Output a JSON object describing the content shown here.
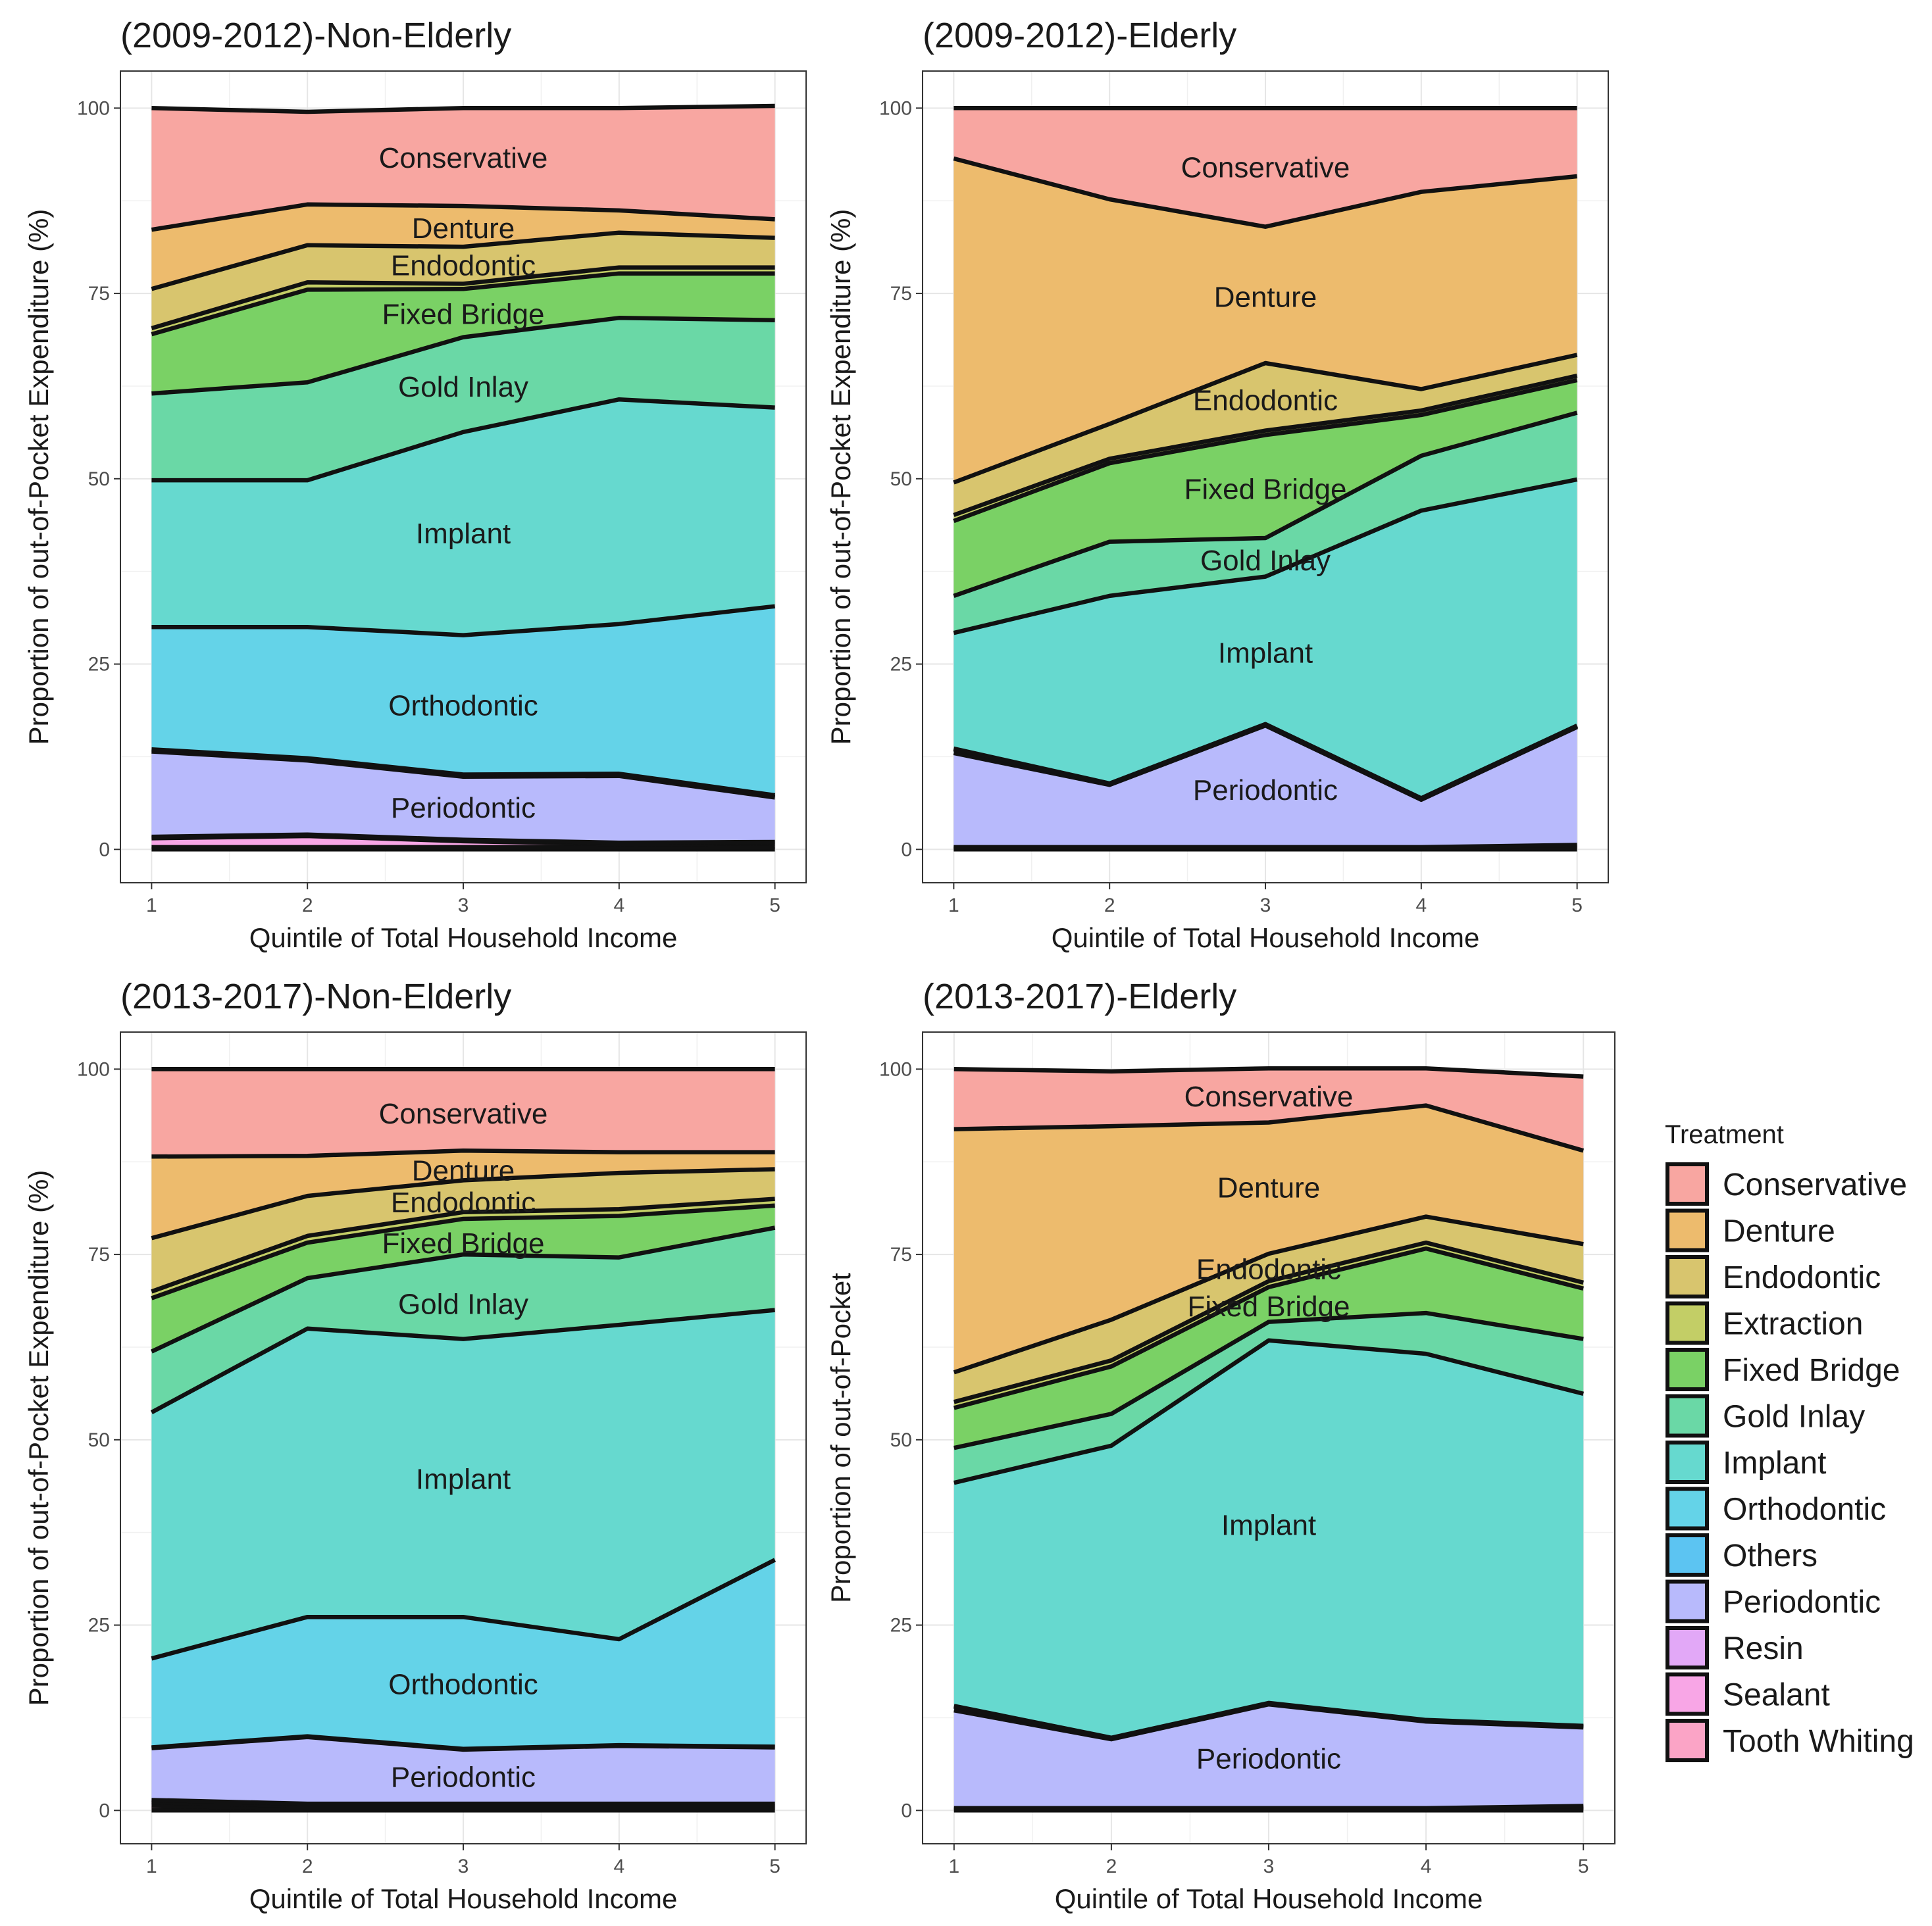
{
  "legend": {
    "title": "Treatment",
    "position": "right",
    "items": [
      {
        "name": "Conservative",
        "color": "#f8a6a1"
      },
      {
        "name": "Denture",
        "color": "#edbb6d"
      },
      {
        "name": "Endodontic",
        "color": "#d8c56e"
      },
      {
        "name": "Extraction",
        "color": "#c3ce66"
      },
      {
        "name": "Fixed Bridge",
        "color": "#7ad165"
      },
      {
        "name": "Gold Inlay",
        "color": "#6ad8a6"
      },
      {
        "name": "Implant",
        "color": "#66d9cf"
      },
      {
        "name": "Orthodontic",
        "color": "#64d3e8"
      },
      {
        "name": "Others",
        "color": "#5cc4f2"
      },
      {
        "name": "Periodontic",
        "color": "#b8bafc"
      },
      {
        "name": "Resin",
        "color": "#e2a8f7"
      },
      {
        "name": "Sealant",
        "color": "#f8a6e6"
      },
      {
        "name": "Tooth Whiting",
        "color": "#fba4c6"
      }
    ]
  },
  "chart_data": [
    {
      "type": "area",
      "stacked": true,
      "title": "(2009-2012)-Non-Elderly",
      "xlabel": "Quintile of Total Household Income",
      "ylabel": "Proportion of out-of-Pocket Expenditure (%)",
      "x": [
        1,
        2,
        3,
        4,
        5
      ],
      "xlim": [
        0.8,
        5.2
      ],
      "ylim": [
        -4.5,
        105
      ],
      "yticks": [
        0,
        25,
        50,
        75,
        100
      ],
      "grid": true,
      "series": [
        {
          "name": "Tooth Whiting",
          "values": [
            0.3,
            0.3,
            0.3,
            0.3,
            0.3
          ]
        },
        {
          "name": "Sealant",
          "values": [
            1.2,
            1.5,
            0.8,
            0.4,
            0.5
          ]
        },
        {
          "name": "Resin",
          "values": [
            0.2,
            0.2,
            0.2,
            0.2,
            0.2
          ]
        },
        {
          "name": "Periodontic",
          "values": [
            11.5,
            10.0,
            8.5,
            9.0,
            6.0
          ]
        },
        {
          "name": "Others",
          "values": [
            0.3,
            0.3,
            0.3,
            0.3,
            0.3
          ]
        },
        {
          "name": "Orthodontic",
          "values": [
            16.5,
            17.7,
            18.8,
            20.2,
            25.5
          ]
        },
        {
          "name": "Implant",
          "values": [
            19.8,
            19.8,
            27.4,
            30.3,
            26.8
          ]
        },
        {
          "name": "Gold Inlay",
          "values": [
            11.7,
            13.2,
            12.8,
            11.0,
            11.8
          ]
        },
        {
          "name": "Fixed Bridge",
          "values": [
            8.0,
            12.5,
            6.5,
            6.0,
            6.3
          ]
        },
        {
          "name": "Extraction",
          "values": [
            0.8,
            1.0,
            0.7,
            0.8,
            0.8
          ]
        },
        {
          "name": "Endodontic",
          "values": [
            5.3,
            5.0,
            5.0,
            4.7,
            4.0
          ]
        },
        {
          "name": "Denture",
          "values": [
            8.0,
            5.5,
            5.5,
            3.0,
            2.5
          ]
        },
        {
          "name": "Conservative",
          "values": [
            16.4,
            12.5,
            13.2,
            13.8,
            15.3
          ]
        }
      ],
      "labels": [
        {
          "text": "Conservative",
          "x": 3,
          "y": 93.3
        },
        {
          "text": "Denture",
          "x": 3,
          "y": 83.8
        },
        {
          "text": "Endodontic",
          "x": 3,
          "y": 78.8
        },
        {
          "text": "Fixed Bridge",
          "x": 3,
          "y": 72.2
        },
        {
          "text": "Gold Inlay",
          "x": 3,
          "y": 62.4
        },
        {
          "text": "Implant",
          "x": 3,
          "y": 42.6
        },
        {
          "text": "Orthodontic",
          "x": 3,
          "y": 19.4
        },
        {
          "text": "Periodontic",
          "x": 3,
          "y": 5.6
        }
      ]
    },
    {
      "type": "area",
      "stacked": true,
      "title": "(2009-2012)-Elderly",
      "xlabel": "Quintile of Total Household Income",
      "ylabel": "Proportion of out-of-Pocket Expenditure (%)",
      "x": [
        1,
        2,
        3,
        4,
        5
      ],
      "xlim": [
        0.8,
        5.2
      ],
      "ylim": [
        -4.5,
        105
      ],
      "yticks": [
        0,
        25,
        50,
        75,
        100
      ],
      "grid": true,
      "series": [
        {
          "name": "Tooth Whiting",
          "values": [
            0.1,
            0.1,
            0.1,
            0.1,
            0.2
          ]
        },
        {
          "name": "Sealant",
          "values": [
            0.1,
            0.1,
            0.1,
            0.1,
            0.2
          ]
        },
        {
          "name": "Resin",
          "values": [
            0.1,
            0.1,
            0.1,
            0.1,
            0.2
          ]
        },
        {
          "name": "Periodontic",
          "values": [
            12.7,
            8.4,
            16.4,
            6.4,
            15.9
          ]
        },
        {
          "name": "Others",
          "values": [
            0.5,
            0.1,
            0.1,
            0.1,
            0.1
          ]
        },
        {
          "name": "Orthodontic",
          "values": [
            0.1,
            0.1,
            0.1,
            0.1,
            0.1
          ]
        },
        {
          "name": "Implant",
          "values": [
            15.6,
            25.3,
            19.9,
            38.8,
            33.2
          ]
        },
        {
          "name": "Gold Inlay",
          "values": [
            5.0,
            7.3,
            5.2,
            7.4,
            9.0
          ]
        },
        {
          "name": "Fixed Bridge",
          "values": [
            10.1,
            10.6,
            13.9,
            5.5,
            4.4
          ]
        },
        {
          "name": "Extraction",
          "values": [
            0.8,
            0.6,
            0.6,
            0.6,
            0.6
          ]
        },
        {
          "name": "Endodontic",
          "values": [
            4.4,
            4.7,
            9.1,
            2.9,
            2.8
          ]
        },
        {
          "name": "Denture",
          "values": [
            43.7,
            30.3,
            18.4,
            26.6,
            24.1
          ]
        },
        {
          "name": "Conservative",
          "values": [
            6.8,
            12.3,
            16.0,
            11.3,
            9.2
          ]
        }
      ],
      "labels": [
        {
          "text": "Conservative",
          "x": 3,
          "y": 92.0
        },
        {
          "text": "Denture",
          "x": 3,
          "y": 74.5
        },
        {
          "text": "Endodontic",
          "x": 3,
          "y": 60.6
        },
        {
          "text": "Fixed Bridge",
          "x": 3,
          "y": 48.6
        },
        {
          "text": "Gold Inlay",
          "x": 3,
          "y": 39.0
        },
        {
          "text": "Implant",
          "x": 3,
          "y": 26.5
        },
        {
          "text": "Periodontic",
          "x": 3,
          "y": 8.0
        }
      ]
    },
    {
      "type": "area",
      "stacked": true,
      "title": "(2013-2017)-Non-Elderly",
      "xlabel": "Quintile of Total Household Income",
      "ylabel": "Proportion of out-of-Pocket Expenditure (%)",
      "x": [
        1,
        2,
        3,
        4,
        5
      ],
      "xlim": [
        0.8,
        5.2
      ],
      "ylim": [
        -4.5,
        105
      ],
      "yticks": [
        0,
        25,
        50,
        75,
        100
      ],
      "grid": true,
      "series": [
        {
          "name": "Tooth Whiting",
          "values": [
            0.6,
            0.3,
            0.3,
            0.3,
            0.3
          ]
        },
        {
          "name": "Sealant",
          "values": [
            0.5,
            0.3,
            0.3,
            0.3,
            0.3
          ]
        },
        {
          "name": "Resin",
          "values": [
            0.3,
            0.3,
            0.3,
            0.3,
            0.3
          ]
        },
        {
          "name": "Periodontic",
          "values": [
            7.0,
            9.0,
            7.3,
            7.8,
            7.6
          ]
        },
        {
          "name": "Others",
          "values": [
            0.1,
            0.1,
            0.1,
            0.1,
            0.1
          ]
        },
        {
          "name": "Orthodontic",
          "values": [
            12.0,
            16.1,
            17.8,
            14.3,
            25.2
          ]
        },
        {
          "name": "Implant",
          "values": [
            33.2,
            38.9,
            37.5,
            42.4,
            33.7
          ]
        },
        {
          "name": "Gold Inlay",
          "values": [
            8.2,
            6.8,
            11.4,
            9.1,
            11.1
          ]
        },
        {
          "name": "Fixed Bridge",
          "values": [
            7.2,
            4.8,
            4.8,
            5.6,
            3.0
          ]
        },
        {
          "name": "Extraction",
          "values": [
            0.9,
            0.9,
            0.9,
            0.9,
            0.9
          ]
        },
        {
          "name": "Endodontic",
          "values": [
            7.2,
            5.4,
            4.3,
            4.9,
            4.0
          ]
        },
        {
          "name": "Denture",
          "values": [
            11.0,
            5.4,
            4.0,
            2.8,
            2.3
          ]
        },
        {
          "name": "Conservative",
          "values": [
            11.8,
            11.7,
            11.0,
            11.2,
            11.2
          ]
        }
      ],
      "labels": [
        {
          "text": "Conservative",
          "x": 3,
          "y": 94.0
        },
        {
          "text": "Denture",
          "x": 3,
          "y": 86.3
        },
        {
          "text": "Endodontic",
          "x": 3,
          "y": 82.0
        },
        {
          "text": "Fixed Bridge",
          "x": 3,
          "y": 76.5
        },
        {
          "text": "Gold Inlay",
          "x": 3,
          "y": 68.3
        },
        {
          "text": "Implant",
          "x": 3,
          "y": 44.7
        },
        {
          "text": "Orthodontic",
          "x": 3,
          "y": 17.0
        },
        {
          "text": "Periodontic",
          "x": 3,
          "y": 4.5
        }
      ]
    },
    {
      "type": "area",
      "stacked": true,
      "title": "(2013-2017)-Elderly",
      "xlabel": "Quintile of Total Household Income",
      "ylabel": "Proportion of out-of-Pocket",
      "x": [
        1,
        2,
        3,
        4,
        5
      ],
      "xlim": [
        0.8,
        5.2
      ],
      "ylim": [
        -4.5,
        105
      ],
      "yticks": [
        0,
        25,
        50,
        75,
        100
      ],
      "grid": true,
      "series": [
        {
          "name": "Tooth Whiting",
          "values": [
            0.1,
            0.1,
            0.1,
            0.1,
            0.2
          ]
        },
        {
          "name": "Sealant",
          "values": [
            0.1,
            0.1,
            0.1,
            0.1,
            0.2
          ]
        },
        {
          "name": "Resin",
          "values": [
            0.1,
            0.1,
            0.1,
            0.1,
            0.2
          ]
        },
        {
          "name": "Periodontic",
          "values": [
            13.2,
            9.3,
            14.0,
            11.7,
            10.6
          ]
        },
        {
          "name": "Others",
          "values": [
            0.5,
            0.1,
            0.1,
            0.1,
            0.1
          ]
        },
        {
          "name": "Orthodontic",
          "values": [
            0.1,
            0.1,
            0.1,
            0.1,
            0.1
          ]
        },
        {
          "name": "Implant",
          "values": [
            30.1,
            39.4,
            48.9,
            49.4,
            44.8
          ]
        },
        {
          "name": "Gold Inlay",
          "values": [
            4.7,
            4.3,
            2.5,
            5.5,
            7.4
          ]
        },
        {
          "name": "Fixed Bridge",
          "values": [
            5.4,
            6.4,
            4.7,
            8.7,
            6.8
          ]
        },
        {
          "name": "Extraction",
          "values": [
            0.8,
            0.8,
            0.8,
            0.8,
            0.8
          ]
        },
        {
          "name": "Endodontic",
          "values": [
            4.0,
            5.5,
            3.7,
            3.5,
            5.2
          ]
        },
        {
          "name": "Denture",
          "values": [
            32.8,
            26.1,
            17.7,
            15.0,
            12.6
          ]
        },
        {
          "name": "Conservative",
          "values": [
            8.1,
            7.4,
            7.3,
            5.0,
            10.0
          ]
        }
      ],
      "labels": [
        {
          "text": "Conservative",
          "x": 3,
          "y": 96.3
        },
        {
          "text": "Denture",
          "x": 3,
          "y": 84.0
        },
        {
          "text": "Endodontic",
          "x": 3,
          "y": 73.0
        },
        {
          "text": "Fixed Bridge",
          "x": 3,
          "y": 68.0
        },
        {
          "text": "Implant",
          "x": 3,
          "y": 38.5
        },
        {
          "text": "Periodontic",
          "x": 3,
          "y": 7.0
        }
      ]
    }
  ]
}
